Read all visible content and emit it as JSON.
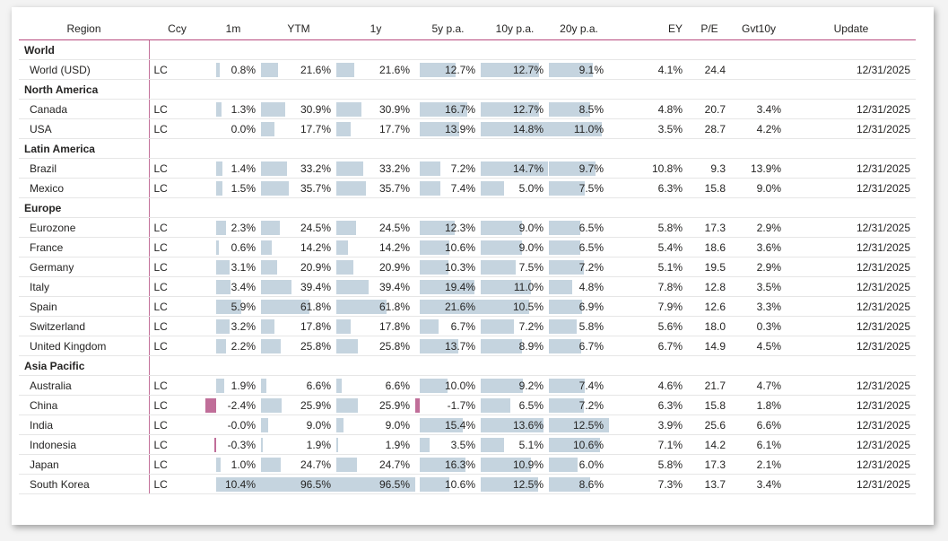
{
  "columns": {
    "region": "Region",
    "ccy": "Ccy",
    "m1": "1m",
    "ytm": "YTM",
    "y1": "1y",
    "y5": "5y p.a.",
    "y10": "10y p.a.",
    "y20": "20y p.a.",
    "ey": "EY",
    "pe": "P/E",
    "gvt10": "Gvt10y",
    "update": "Update"
  },
  "colors": {
    "positive_bar": "#c5d4df",
    "negative_bar": "#c06e99",
    "header_rule": "#b84a7f"
  },
  "bar_scale": {
    "m1": {
      "max": 10.4,
      "min": -2.4
    },
    "ytm": {
      "max": 96.5
    },
    "y1": {
      "max": 96.5
    },
    "y5": {
      "max": 21.6,
      "min": -1.7
    },
    "y10": {
      "max": 14.8
    },
    "y20": {
      "max": 12.5
    }
  },
  "rows": [
    {
      "type": "group",
      "label": "World"
    },
    {
      "type": "data",
      "region": "World (USD)",
      "ccy": "LC",
      "m1": "0.8%",
      "ytm": "21.6%",
      "y1": "21.6%",
      "y5": "12.7%",
      "y10": "12.7%",
      "y20": "9.1%",
      "ey": "4.1%",
      "pe": "24.4",
      "gvt10": "",
      "update": "12/31/2025"
    },
    {
      "type": "group",
      "label": "North America"
    },
    {
      "type": "data",
      "region": "Canada",
      "ccy": "LC",
      "m1": "1.3%",
      "ytm": "30.9%",
      "y1": "30.9%",
      "y5": "16.7%",
      "y10": "12.7%",
      "y20": "8.5%",
      "ey": "4.8%",
      "pe": "20.7",
      "gvt10": "3.4%",
      "update": "12/31/2025"
    },
    {
      "type": "data",
      "region": "USA",
      "ccy": "LC",
      "m1": "0.0%",
      "ytm": "17.7%",
      "y1": "17.7%",
      "y5": "13.9%",
      "y10": "14.8%",
      "y20": "11.0%",
      "ey": "3.5%",
      "pe": "28.7",
      "gvt10": "4.2%",
      "update": "12/31/2025"
    },
    {
      "type": "group",
      "label": "Latin America"
    },
    {
      "type": "data",
      "region": "Brazil",
      "ccy": "LC",
      "m1": "1.4%",
      "ytm": "33.2%",
      "y1": "33.2%",
      "y5": "7.2%",
      "y10": "14.7%",
      "y20": "9.7%",
      "ey": "10.8%",
      "pe": "9.3",
      "gvt10": "13.9%",
      "update": "12/31/2025"
    },
    {
      "type": "data",
      "region": "Mexico",
      "ccy": "LC",
      "m1": "1.5%",
      "ytm": "35.7%",
      "y1": "35.7%",
      "y5": "7.4%",
      "y10": "5.0%",
      "y20": "7.5%",
      "ey": "6.3%",
      "pe": "15.8",
      "gvt10": "9.0%",
      "update": "12/31/2025"
    },
    {
      "type": "group",
      "label": "Europe"
    },
    {
      "type": "data",
      "region": "Eurozone",
      "ccy": "LC",
      "m1": "2.3%",
      "ytm": "24.5%",
      "y1": "24.5%",
      "y5": "12.3%",
      "y10": "9.0%",
      "y20": "6.5%",
      "ey": "5.8%",
      "pe": "17.3",
      "gvt10": "2.9%",
      "update": "12/31/2025"
    },
    {
      "type": "data",
      "region": "France",
      "ccy": "LC",
      "m1": "0.6%",
      "ytm": "14.2%",
      "y1": "14.2%",
      "y5": "10.6%",
      "y10": "9.0%",
      "y20": "6.5%",
      "ey": "5.4%",
      "pe": "18.6",
      "gvt10": "3.6%",
      "update": "12/31/2025"
    },
    {
      "type": "data",
      "region": "Germany",
      "ccy": "LC",
      "m1": "3.1%",
      "ytm": "20.9%",
      "y1": "20.9%",
      "y5": "10.3%",
      "y10": "7.5%",
      "y20": "7.2%",
      "ey": "5.1%",
      "pe": "19.5",
      "gvt10": "2.9%",
      "update": "12/31/2025"
    },
    {
      "type": "data",
      "region": "Italy",
      "ccy": "LC",
      "m1": "3.4%",
      "ytm": "39.4%",
      "y1": "39.4%",
      "y5": "19.4%",
      "y10": "11.0%",
      "y20": "4.8%",
      "ey": "7.8%",
      "pe": "12.8",
      "gvt10": "3.5%",
      "update": "12/31/2025"
    },
    {
      "type": "data",
      "region": "Spain",
      "ccy": "LC",
      "m1": "5.9%",
      "ytm": "61.8%",
      "y1": "61.8%",
      "y5": "21.6%",
      "y10": "10.5%",
      "y20": "6.9%",
      "ey": "7.9%",
      "pe": "12.6",
      "gvt10": "3.3%",
      "update": "12/31/2025"
    },
    {
      "type": "data",
      "region": "Switzerland",
      "ccy": "LC",
      "m1": "3.2%",
      "ytm": "17.8%",
      "y1": "17.8%",
      "y5": "6.7%",
      "y10": "7.2%",
      "y20": "5.8%",
      "ey": "5.6%",
      "pe": "18.0",
      "gvt10": "0.3%",
      "update": "12/31/2025"
    },
    {
      "type": "data",
      "region": "United Kingdom",
      "ccy": "LC",
      "m1": "2.2%",
      "ytm": "25.8%",
      "y1": "25.8%",
      "y5": "13.7%",
      "y10": "8.9%",
      "y20": "6.7%",
      "ey": "6.7%",
      "pe": "14.9",
      "gvt10": "4.5%",
      "update": "12/31/2025"
    },
    {
      "type": "group",
      "label": "Asia Pacific"
    },
    {
      "type": "data",
      "region": "Australia",
      "ccy": "LC",
      "m1": "1.9%",
      "ytm": "6.6%",
      "y1": "6.6%",
      "y5": "10.0%",
      "y10": "9.2%",
      "y20": "7.4%",
      "ey": "4.6%",
      "pe": "21.7",
      "gvt10": "4.7%",
      "update": "12/31/2025"
    },
    {
      "type": "data",
      "region": "China",
      "ccy": "LC",
      "m1": "-2.4%",
      "ytm": "25.9%",
      "y1": "25.9%",
      "y5": "-1.7%",
      "y10": "6.5%",
      "y20": "7.2%",
      "ey": "6.3%",
      "pe": "15.8",
      "gvt10": "1.8%",
      "update": "12/31/2025"
    },
    {
      "type": "data",
      "region": "India",
      "ccy": "LC",
      "m1": "-0.0%",
      "ytm": "9.0%",
      "y1": "9.0%",
      "y5": "15.4%",
      "y10": "13.6%",
      "y20": "12.5%",
      "ey": "3.9%",
      "pe": "25.6",
      "gvt10": "6.6%",
      "update": "12/31/2025"
    },
    {
      "type": "data",
      "region": "Indonesia",
      "ccy": "LC",
      "m1": "-0.3%",
      "ytm": "1.9%",
      "y1": "1.9%",
      "y5": "3.5%",
      "y10": "5.1%",
      "y20": "10.6%",
      "ey": "7.1%",
      "pe": "14.2",
      "gvt10": "6.1%",
      "update": "12/31/2025"
    },
    {
      "type": "data",
      "region": "Japan",
      "ccy": "LC",
      "m1": "1.0%",
      "ytm": "24.7%",
      "y1": "24.7%",
      "y5": "16.3%",
      "y10": "10.9%",
      "y20": "6.0%",
      "ey": "5.8%",
      "pe": "17.3",
      "gvt10": "2.1%",
      "update": "12/31/2025"
    },
    {
      "type": "data",
      "region": "South Korea",
      "ccy": "LC",
      "m1": "10.4%",
      "ytm": "96.5%",
      "y1": "96.5%",
      "y5": "10.6%",
      "y10": "12.5%",
      "y20": "8.6%",
      "ey": "7.3%",
      "pe": "13.7",
      "gvt10": "3.4%",
      "update": "12/31/2025"
    }
  ]
}
